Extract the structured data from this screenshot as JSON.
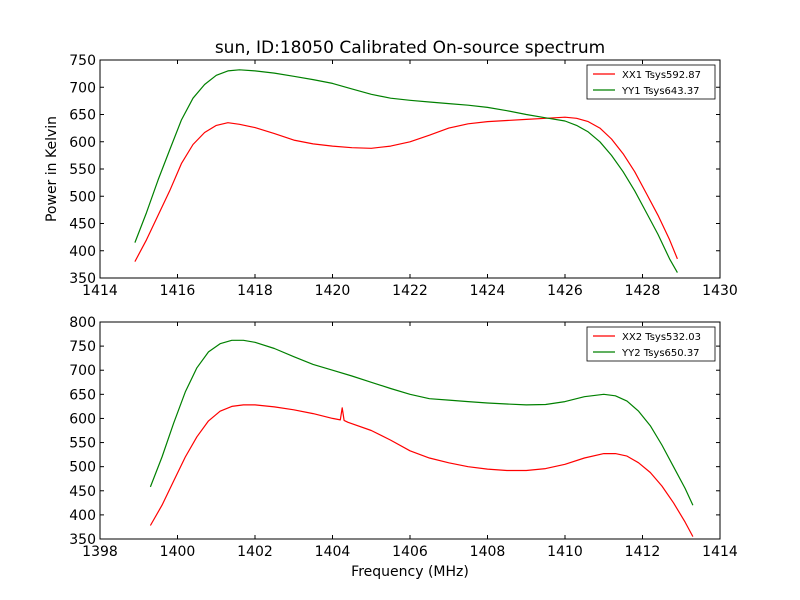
{
  "chart_data": [
    {
      "type": "line",
      "title": "sun, ID:18050 Calibrated On-source spectrum",
      "ylabel": "Power in Kelvin",
      "xlabel": "",
      "xlim": [
        1414,
        1430
      ],
      "ylim": [
        350,
        750
      ],
      "xticks": [
        1414,
        1416,
        1418,
        1420,
        1422,
        1424,
        1426,
        1428,
        1430
      ],
      "yticks": [
        350,
        400,
        450,
        500,
        550,
        600,
        650,
        700,
        750
      ],
      "legend_position": "top-right",
      "series": [
        {
          "name": "XX1 Tsys592.87",
          "color": "#ff0000",
          "x": [
            1414.9,
            1415.2,
            1415.5,
            1415.8,
            1416.1,
            1416.4,
            1416.7,
            1417.0,
            1417.3,
            1417.6,
            1418.0,
            1418.5,
            1419.0,
            1419.5,
            1420.0,
            1420.5,
            1421.0,
            1421.5,
            1422.0,
            1422.5,
            1423.0,
            1423.5,
            1424.0,
            1424.5,
            1425.0,
            1425.5,
            1426.0,
            1426.3,
            1426.6,
            1426.9,
            1427.2,
            1427.5,
            1427.8,
            1428.1,
            1428.4,
            1428.7,
            1428.9
          ],
          "y": [
            380,
            420,
            465,
            510,
            560,
            595,
            617,
            630,
            635,
            632,
            626,
            615,
            603,
            596,
            592,
            589,
            588,
            592,
            600,
            612,
            625,
            633,
            637,
            639,
            641,
            643,
            645,
            643,
            637,
            625,
            605,
            578,
            545,
            505,
            465,
            420,
            385
          ]
        },
        {
          "name": "YY1 Tsys643.37",
          "color": "#008000",
          "x": [
            1414.9,
            1415.2,
            1415.5,
            1415.8,
            1416.1,
            1416.4,
            1416.7,
            1417.0,
            1417.3,
            1417.6,
            1418.0,
            1418.5,
            1419.0,
            1419.5,
            1420.0,
            1420.5,
            1421.0,
            1421.5,
            1422.0,
            1422.5,
            1423.0,
            1423.5,
            1424.0,
            1424.5,
            1425.0,
            1425.5,
            1426.0,
            1426.3,
            1426.6,
            1426.9,
            1427.2,
            1427.5,
            1427.8,
            1428.1,
            1428.4,
            1428.7,
            1428.9
          ],
          "y": [
            415,
            470,
            530,
            585,
            640,
            680,
            705,
            722,
            730,
            732,
            730,
            726,
            720,
            714,
            707,
            697,
            687,
            680,
            676,
            673,
            670,
            667,
            663,
            657,
            650,
            644,
            638,
            630,
            618,
            600,
            575,
            545,
            510,
            470,
            430,
            385,
            360
          ]
        }
      ]
    },
    {
      "type": "line",
      "title": "",
      "ylabel": "",
      "xlabel": "Frequency (MHz)",
      "xlim": [
        1398,
        1414
      ],
      "ylim": [
        350,
        800
      ],
      "xticks": [
        1398,
        1400,
        1402,
        1404,
        1406,
        1408,
        1410,
        1412,
        1414
      ],
      "yticks": [
        350,
        400,
        450,
        500,
        550,
        600,
        650,
        700,
        750,
        800
      ],
      "legend_position": "top-right",
      "series": [
        {
          "name": "XX2 Tsys532.03",
          "color": "#ff0000",
          "x": [
            1399.3,
            1399.6,
            1399.9,
            1400.2,
            1400.5,
            1400.8,
            1401.1,
            1401.4,
            1401.7,
            1402.0,
            1402.5,
            1403.0,
            1403.5,
            1404.0,
            1404.2,
            1404.25,
            1404.3,
            1404.4,
            1405.0,
            1405.5,
            1406.0,
            1406.5,
            1407.0,
            1407.5,
            1408.0,
            1408.5,
            1409.0,
            1409.5,
            1410.0,
            1410.5,
            1411.0,
            1411.3,
            1411.6,
            1411.9,
            1412.2,
            1412.5,
            1412.8,
            1413.1,
            1413.3
          ],
          "y": [
            378,
            420,
            470,
            520,
            562,
            595,
            615,
            625,
            628,
            628,
            624,
            618,
            610,
            600,
            597,
            622,
            596,
            592,
            575,
            555,
            533,
            518,
            508,
            500,
            495,
            492,
            492,
            496,
            505,
            518,
            527,
            527,
            522,
            508,
            488,
            460,
            425,
            385,
            355
          ]
        },
        {
          "name": "YY2 Tsys650.37",
          "color": "#008000",
          "x": [
            1399.3,
            1399.6,
            1399.9,
            1400.2,
            1400.5,
            1400.8,
            1401.1,
            1401.4,
            1401.7,
            1402.0,
            1402.5,
            1403.0,
            1403.5,
            1404.0,
            1404.5,
            1405.0,
            1405.5,
            1406.0,
            1406.5,
            1407.0,
            1407.5,
            1408.0,
            1408.5,
            1409.0,
            1409.5,
            1410.0,
            1410.5,
            1411.0,
            1411.3,
            1411.6,
            1411.9,
            1412.2,
            1412.5,
            1412.8,
            1413.1,
            1413.3
          ],
          "y": [
            458,
            520,
            590,
            655,
            705,
            738,
            755,
            762,
            762,
            758,
            745,
            728,
            712,
            700,
            688,
            675,
            662,
            650,
            641,
            638,
            635,
            632,
            630,
            628,
            629,
            635,
            645,
            650,
            647,
            636,
            615,
            585,
            545,
            500,
            455,
            420
          ]
        }
      ]
    }
  ]
}
